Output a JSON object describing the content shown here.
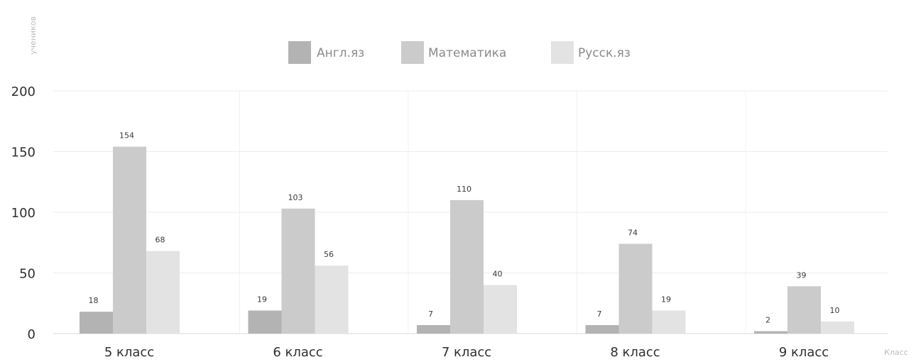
{
  "chart_data": {
    "type": "bar",
    "title": "",
    "xlabel": "Класс",
    "ylabel": "учеников",
    "categories": [
      "5 класс",
      "6 класс",
      "7 класс",
      "8 класс",
      "9 класс"
    ],
    "series": [
      {
        "name": "Англ.яз",
        "color": "#b3b3b3",
        "values": [
          18,
          19,
          7,
          7,
          2
        ]
      },
      {
        "name": "Математика",
        "color": "#cbcbcb",
        "values": [
          154,
          103,
          110,
          74,
          39
        ]
      },
      {
        "name": "Русск.яз",
        "color": "#e3e3e3",
        "values": [
          68,
          56,
          40,
          19,
          10
        ]
      }
    ],
    "ylim": [
      0,
      200
    ],
    "yticks": [
      0,
      50,
      100,
      150,
      200
    ],
    "grid": true,
    "legend_position": "top-center"
  }
}
